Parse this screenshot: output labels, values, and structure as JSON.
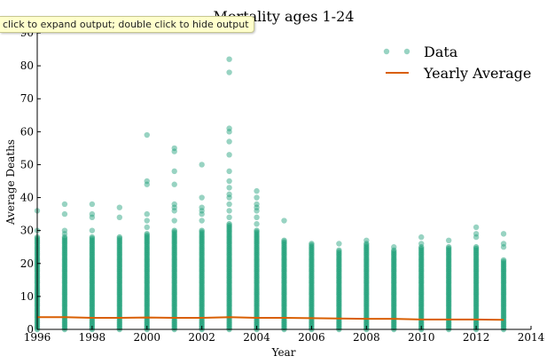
{
  "banner": {
    "text": "click to expand output; double click to hide output"
  },
  "chart_data": {
    "type": "scatter",
    "title": "Mortality ages 1-24",
    "xlabel": "Year",
    "ylabel": "Average Deaths",
    "xlim": [
      1996,
      2014
    ],
    "ylim": [
      0,
      90
    ],
    "x_ticks": [
      1996,
      1998,
      2000,
      2002,
      2004,
      2006,
      2008,
      2010,
      2012,
      2014
    ],
    "y_ticks": [
      0,
      10,
      20,
      30,
      40,
      50,
      60,
      70,
      80,
      90
    ],
    "grid": false,
    "legend_position": "top-right",
    "series": [
      {
        "name": "Data",
        "kind": "scatter",
        "color": "#1b9e77",
        "points_by_year": [
          {
            "x": 1996,
            "max_dense": 28,
            "outliers": [
              30,
              36
            ]
          },
          {
            "x": 1997,
            "max_dense": 28,
            "outliers": [
              29,
              30,
              35,
              38
            ]
          },
          {
            "x": 1998,
            "max_dense": 28,
            "outliers": [
              30,
              34,
              35,
              38
            ]
          },
          {
            "x": 1999,
            "max_dense": 28,
            "outliers": [
              34,
              37
            ]
          },
          {
            "x": 2000,
            "max_dense": 29,
            "outliers": [
              31,
              33,
              35,
              44,
              45,
              59
            ]
          },
          {
            "x": 2001,
            "max_dense": 30,
            "outliers": [
              33,
              36,
              37,
              38,
              44,
              48,
              54,
              55
            ]
          },
          {
            "x": 2002,
            "max_dense": 30,
            "outliers": [
              33,
              35,
              36,
              37,
              40,
              50
            ]
          },
          {
            "x": 2003,
            "max_dense": 32,
            "outliers": [
              34,
              36,
              38,
              40,
              41,
              43,
              45,
              48,
              53,
              57,
              60,
              61,
              78,
              82
            ]
          },
          {
            "x": 2004,
            "max_dense": 30,
            "outliers": [
              32,
              34,
              36,
              37,
              38,
              40,
              42
            ]
          },
          {
            "x": 2005,
            "max_dense": 27,
            "outliers": [
              33
            ]
          },
          {
            "x": 2006,
            "max_dense": 26,
            "outliers": []
          },
          {
            "x": 2007,
            "max_dense": 24,
            "outliers": [
              26
            ]
          },
          {
            "x": 2008,
            "max_dense": 26,
            "outliers": [
              27
            ]
          },
          {
            "x": 2009,
            "max_dense": 24,
            "outliers": [
              25
            ]
          },
          {
            "x": 2010,
            "max_dense": 25,
            "outliers": [
              26,
              28
            ]
          },
          {
            "x": 2011,
            "max_dense": 25,
            "outliers": [
              27
            ]
          },
          {
            "x": 2012,
            "max_dense": 25,
            "outliers": [
              28,
              29,
              31
            ]
          },
          {
            "x": 2013,
            "max_dense": 21,
            "outliers": [
              25,
              26,
              29
            ]
          }
        ]
      },
      {
        "name": "Yearly Average",
        "kind": "line",
        "color": "#d95f02",
        "x": [
          1996,
          1997,
          1998,
          1999,
          2000,
          2001,
          2002,
          2003,
          2004,
          2005,
          2006,
          2007,
          2008,
          2009,
          2010,
          2011,
          2012,
          2013
        ],
        "y": [
          3.7,
          3.7,
          3.5,
          3.5,
          3.6,
          3.5,
          3.5,
          3.7,
          3.5,
          3.5,
          3.4,
          3.3,
          3.2,
          3.2,
          3.0,
          3.0,
          3.0,
          2.9
        ]
      }
    ]
  }
}
